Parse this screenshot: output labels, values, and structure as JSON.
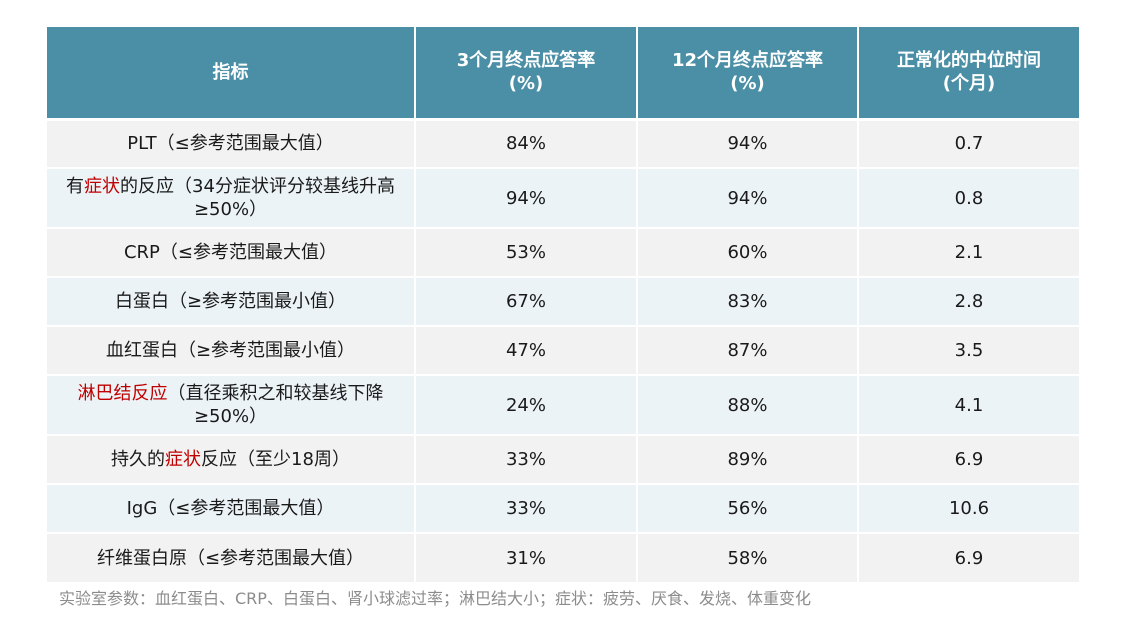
{
  "table": {
    "headers": [
      {
        "line1": "指标",
        "line2": ""
      },
      {
        "line1": "3个月终点应答率",
        "line2": "(%)"
      },
      {
        "line1": "12个月终点应答率",
        "line2": "(%)"
      },
      {
        "line1": "正常化的中位时间",
        "line2": "(个月)"
      }
    ],
    "rows": [
      {
        "pre": "PLT（≤参考范围最大值）",
        "red": "",
        "post": "",
        "m3": "84%",
        "m12": "94%",
        "median": "0.7"
      },
      {
        "pre": "有",
        "red": "症状",
        "post": "的反应（34分症状评分较基线升高≥50%）",
        "m3": "94%",
        "m12": "94%",
        "median": "0.8"
      },
      {
        "pre": "CRP（≤参考范围最大值）",
        "red": "",
        "post": "",
        "m3": "53%",
        "m12": "60%",
        "median": "2.1"
      },
      {
        "pre": "白蛋白（≥参考范围最小值）",
        "red": "",
        "post": "",
        "m3": "67%",
        "m12": "83%",
        "median": "2.8"
      },
      {
        "pre": "血红蛋白（≥参考范围最小值）",
        "red": "",
        "post": "",
        "m3": "47%",
        "m12": "87%",
        "median": "3.5"
      },
      {
        "pre": "",
        "red": "淋巴结反应",
        "post": "（直径乘积之和较基线下降≥50%）",
        "m3": "24%",
        "m12": "88%",
        "median": "4.1"
      },
      {
        "pre": "持久的",
        "red": "症状",
        "post": "反应（至少18周）",
        "m3": "33%",
        "m12": "89%",
        "median": "6.9"
      },
      {
        "pre": "IgG（≤参考范围最大值）",
        "red": "",
        "post": "",
        "m3": "33%",
        "m12": "56%",
        "median": "10.6"
      },
      {
        "pre": "纤维蛋白原（≤参考范围最大值）",
        "red": "",
        "post": "",
        "m3": "31%",
        "m12": "58%",
        "median": "6.9"
      }
    ]
  },
  "footnote": "实验室参数：血红蛋白、CRP、白蛋白、肾小球滤过率；淋巴结大小；症状：疲劳、厌食、发烧、体重变化",
  "colors": {
    "header_bg": "#4a8fa6",
    "row_odd": "#f2f2f2",
    "row_even": "#ecf3f6",
    "highlight": "#c00000",
    "footnote": "#8c8c8c"
  }
}
